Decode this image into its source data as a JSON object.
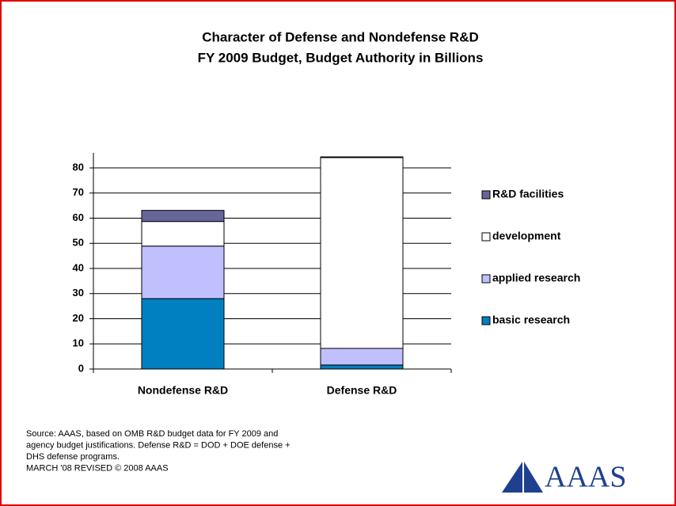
{
  "chart_data": {
    "type": "stacked_bar",
    "title": [
      "Character of Defense and Nondefense R&D",
      "FY 2009 Budget, Budget Authority in Billions"
    ],
    "categories": [
      "Nondefense R&D",
      "Defense R&D"
    ],
    "series": [
      {
        "name": "basic research",
        "color": "#0080c0",
        "values": [
          28.0,
          1.6
        ]
      },
      {
        "name": "applied research",
        "color": "#c0c0ff",
        "values": [
          20.9,
          6.6
        ]
      },
      {
        "name": "development",
        "color": "#ffffff",
        "values": [
          9.8,
          75.9
        ]
      },
      {
        "name": "R&D facilities",
        "color": "#666699",
        "values": [
          4.4,
          0.3
        ]
      }
    ],
    "ylim": [
      0,
      86
    ],
    "yticks": [
      0,
      10,
      20,
      30,
      40,
      50,
      60,
      70,
      80
    ],
    "grid": true,
    "legend": "right",
    "source": [
      "Source: AAAS, based on OMB R&D budget data for FY 2009 and",
      "agency budget justifications. Defense R&D = DOD + DOE defense +",
      "DHS defense programs.",
      "MARCH '08 REVISED © 2008 AAAS"
    ],
    "logo": "AAAS"
  }
}
